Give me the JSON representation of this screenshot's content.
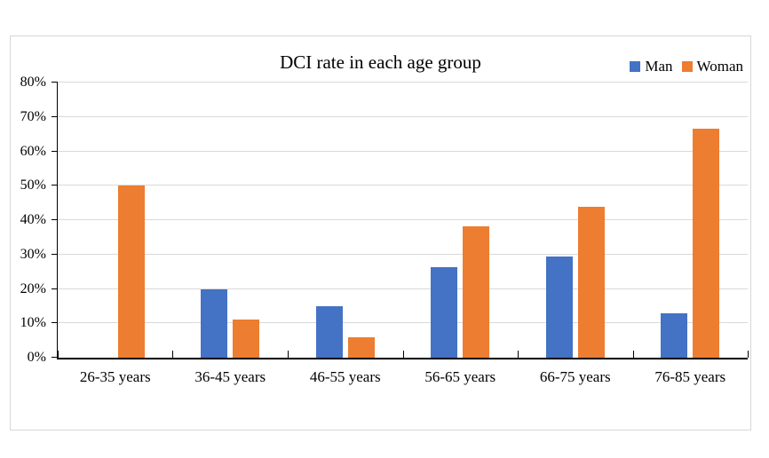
{
  "chart_data": {
    "type": "bar",
    "title": "DCI rate in each age group",
    "categories": [
      "26-35 years",
      "36-45 years",
      "46-55 years",
      "56-65 years",
      "66-75 years",
      "76-85 years"
    ],
    "series": [
      {
        "name": "Man",
        "color": "#4472C4",
        "values": [
          0,
          20,
          15,
          26.3,
          29.4,
          13
        ]
      },
      {
        "name": "Woman",
        "color": "#ED7D31",
        "values": [
          50,
          11.1,
          6,
          38.2,
          44,
          66.7
        ]
      }
    ],
    "unit": "%",
    "xlabel": "",
    "ylabel": "",
    "ylim": [
      0,
      80
    ],
    "ytick_step": 10,
    "ytick_labels": [
      "0%",
      "10%",
      "20%",
      "30%",
      "40%",
      "50%",
      "60%",
      "70%",
      "80%"
    ],
    "grid": true,
    "legend_position": "top-right",
    "colors": {
      "gridline": "#D9D9D9",
      "axis": "#000000",
      "chart_border": "#D6D6D6",
      "text": "#000000"
    }
  }
}
